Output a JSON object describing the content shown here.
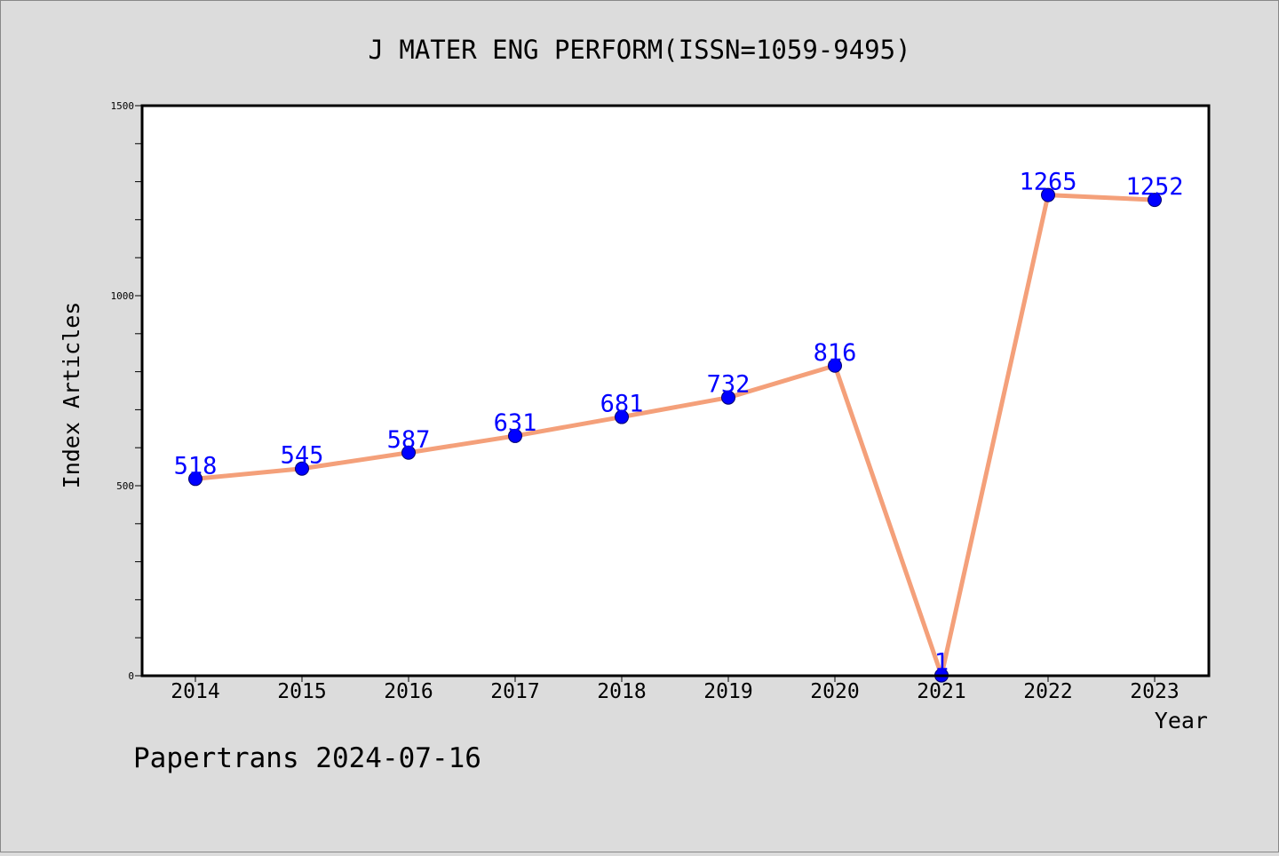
{
  "footer": "Papertrans 2024-07-16",
  "colors": {
    "background": "#dcdcdc",
    "plot_area": "#ffffff",
    "line": "#f4a07a",
    "marker": "#0000ff",
    "data_label": "#0000ff"
  },
  "chart_data": {
    "type": "line",
    "title": "J MATER ENG PERFORM(ISSN=1059-9495)",
    "xlabel": "Year",
    "ylabel": "Index Articles",
    "categories": [
      "2014",
      "2015",
      "2016",
      "2017",
      "2018",
      "2019",
      "2020",
      "2021",
      "2022",
      "2023"
    ],
    "values": [
      518,
      545,
      587,
      631,
      681,
      732,
      816,
      1,
      1265,
      1252
    ],
    "ylim": [
      0,
      1500
    ],
    "yticks": [
      0,
      500,
      1000,
      1500
    ],
    "grid": false,
    "marker": "circle",
    "data_labels": true
  }
}
